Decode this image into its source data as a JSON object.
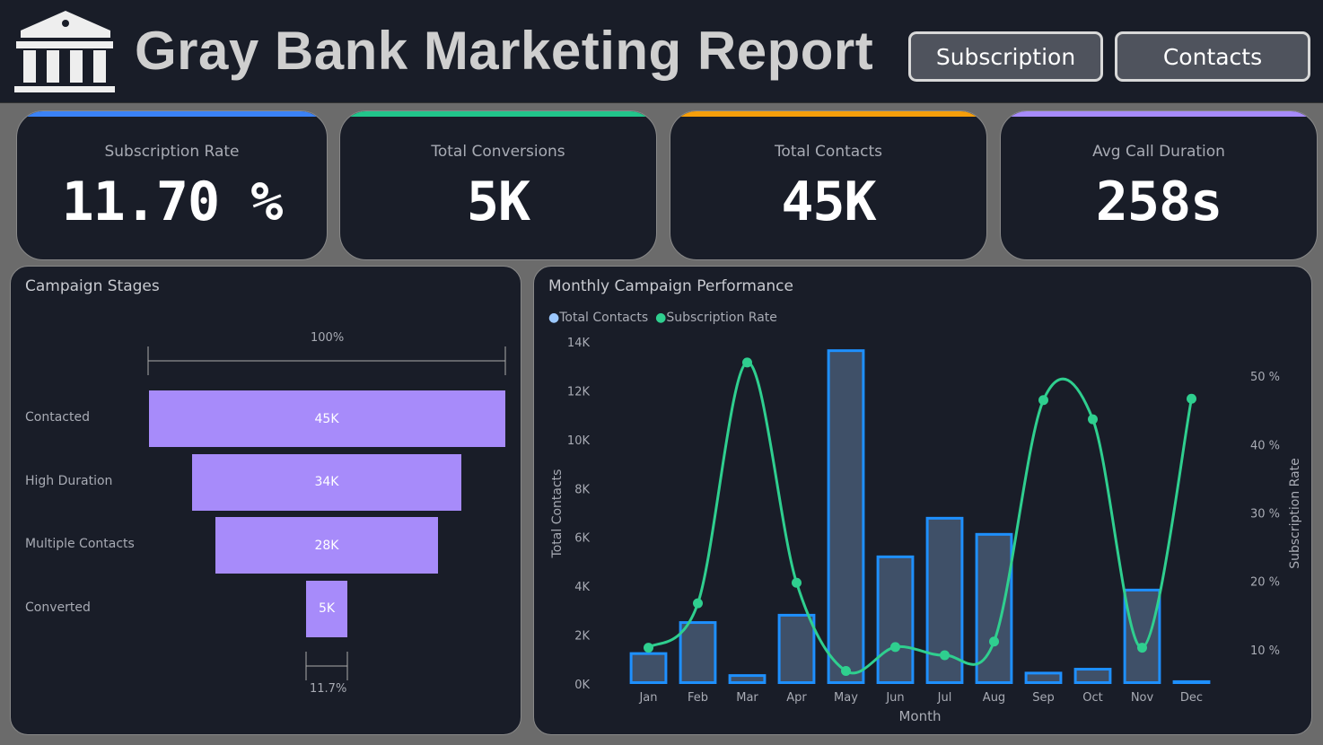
{
  "header": {
    "title": "Gray Bank Marketing Report",
    "logo_icon": "bank-icon",
    "buttons": [
      "Subscription",
      "Contacts"
    ]
  },
  "kpis": [
    {
      "label": "Subscription Rate",
      "value": "11.70 %",
      "color": "#3b82f6"
    },
    {
      "label": "Total Conversions",
      "value": "5K",
      "color": "#22c58b"
    },
    {
      "label": "Total Contacts",
      "value": "45K",
      "color": "#f59e0b"
    },
    {
      "label": "Avg Call Duration",
      "value": "258s",
      "color": "#a78bfa"
    }
  ],
  "funnel": {
    "title": "Campaign Stages",
    "top_pct": "100%",
    "bottom_pct": "11.7%",
    "color": "#a78bfa",
    "stages": [
      {
        "label": "Contacted",
        "value": 45,
        "text": "45K"
      },
      {
        "label": "High Duration",
        "value": 34,
        "text": "34K"
      },
      {
        "label": "Multiple Contacts",
        "value": 28,
        "text": "28K"
      },
      {
        "label": "Converted",
        "value": 5.3,
        "text": "5K"
      }
    ]
  },
  "chart_data": {
    "type": "bar",
    "title": "Monthly Campaign Performance",
    "legend": [
      "Total Contacts",
      "Subscription Rate"
    ],
    "legend_placement": "top-left",
    "xlabel": "Month",
    "ylabel": "Total Contacts",
    "y2label": "Subscription Rate",
    "categories": [
      "Jan",
      "Feb",
      "Mar",
      "Apr",
      "May",
      "Jun",
      "Jul",
      "Aug",
      "Sep",
      "Oct",
      "Nov",
      "Dec"
    ],
    "ylim": [
      0,
      14000
    ],
    "y_ticks": [
      "0K",
      "2K",
      "4K",
      "6K",
      "8K",
      "10K",
      "12K",
      "14K"
    ],
    "y2lim": [
      5,
      55
    ],
    "y2_ticks": [
      "10 %",
      "20 %",
      "30 %",
      "40 %",
      "50 %"
    ],
    "series": [
      {
        "name": "Total Contacts",
        "type": "bar",
        "color": "#1e90ff",
        "fill": "#3f5068",
        "values": [
          1300,
          2570,
          400,
          2870,
          13700,
          5260,
          6840,
          6180,
          500,
          660,
          3900,
          150
        ]
      },
      {
        "name": "Subscription Rate",
        "type": "line",
        "color": "#2fcf8f",
        "values": [
          10.3,
          16.8,
          52.0,
          19.8,
          6.9,
          10.4,
          9.2,
          11.2,
          46.5,
          43.7,
          10.3,
          46.7
        ]
      }
    ]
  }
}
